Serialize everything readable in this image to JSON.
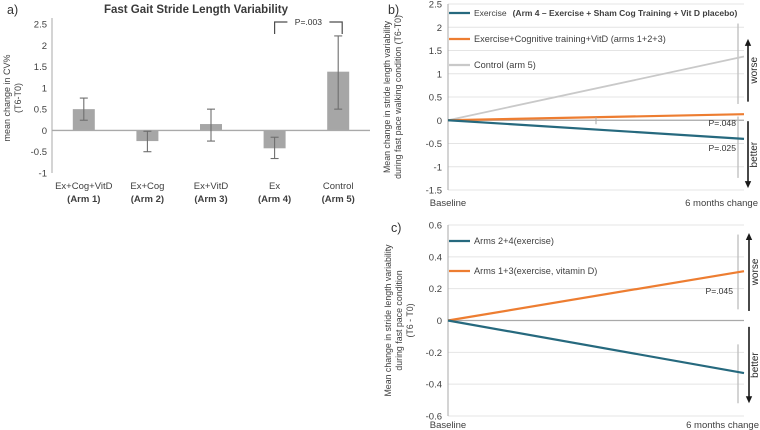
{
  "figure": {
    "panel_a_label": "a)",
    "panel_b_label": "b)",
    "panel_c_label": "c)"
  },
  "colors": {
    "teal": "#26697E",
    "orange": "#ED7D31",
    "control_gray": "#C9C9C9",
    "bar_gray": "#A6A6A6",
    "error_gray": "#6E6E6E",
    "ci_gray": "#BDBDBD",
    "axis_gray": "#A9A9A9",
    "grid_gray": "#E4E4E4",
    "text_dark": "#3F3F3F",
    "arrow_black": "#1A1A1A"
  },
  "chart_data": [
    {
      "id": "a",
      "type": "bar",
      "title": "Fast Gait Stride Length Variability",
      "ylabel": "mean change in CV%",
      "ylabel2": "(T6-T0)",
      "categories": [
        "Ex+Cog+VitD",
        "Ex+Cog",
        "Ex+VitD",
        "Ex",
        "Control"
      ],
      "arm_labels": [
        "(Arm 1)",
        "(Arm 2)",
        "(Arm 3)",
        "(Arm 4)",
        "(Arm 5)"
      ],
      "values": [
        0.5,
        -0.25,
        0.15,
        -0.42,
        1.38
      ],
      "error_low": [
        0.24,
        -0.5,
        -0.25,
        -0.66,
        0.5
      ],
      "error_high": [
        0.76,
        -0.02,
        0.5,
        -0.16,
        2.22
      ],
      "ylim": [
        -1,
        2.5
      ],
      "yticks": [
        2.5,
        2,
        1.5,
        1,
        0.5,
        0,
        -0.5,
        -1
      ],
      "significance": {
        "label": "P=.003",
        "from": 3,
        "to": 4
      },
      "grid": false
    },
    {
      "id": "b",
      "type": "line",
      "ylabel": "Mean change in stride length variability",
      "ylabel2": "during fast pace walking condition (T6-T0)",
      "x_categories": [
        "Baseline",
        "6 months change"
      ],
      "ylim": [
        -1.5,
        2.5
      ],
      "yticks": [
        2.5,
        2,
        1.5,
        1,
        0.5,
        0,
        -0.5,
        -1,
        -1.5
      ],
      "grid": true,
      "legend_position": "top-left",
      "series": [
        {
          "name": "Exercise",
          "name_detail": "(Arm 4 – Exercise + Sham Cog Training + Vit D placebo)",
          "color": "#26697E",
          "values": [
            0,
            -0.4
          ],
          "p_label": "P=.025",
          "ci": [
            -1.24,
            0.08
          ]
        },
        {
          "name": "Exercise+Cognitive training+VitD (arms 1+2+3)",
          "color": "#ED7D31",
          "values": [
            0,
            0.13
          ],
          "p_label": "P=.048"
        },
        {
          "name": "Control (arm 5)",
          "color": "#C9C9C9",
          "values": [
            0,
            1.37
          ],
          "ci": [
            0.35,
            2.08
          ]
        }
      ],
      "worse_label": "worse",
      "better_label": "better"
    },
    {
      "id": "c",
      "type": "line",
      "ylabel": "Mean change in stride length variability",
      "ylabel2": "during fast pace condition",
      "ylabel3": "(T6 - T0)",
      "x_categories": [
        "Baseline",
        "6 months change"
      ],
      "ylim": [
        -0.6,
        0.6
      ],
      "yticks": [
        0.6,
        0.4,
        0.2,
        0,
        -0.2,
        -0.4,
        -0.6
      ],
      "grid": true,
      "legend_position": "top-left",
      "series": [
        {
          "name": "Arms 2+4(exercise)",
          "color": "#26697E",
          "values": [
            0,
            -0.33
          ],
          "ci": [
            -0.52,
            -0.15
          ]
        },
        {
          "name": "Arms 1+3(exercise, vitamin D)",
          "color": "#ED7D31",
          "values": [
            0,
            0.31
          ],
          "p_label": "P=.045",
          "ci": [
            0.07,
            0.54
          ]
        }
      ],
      "worse_label": "worse",
      "better_label": "better"
    }
  ]
}
